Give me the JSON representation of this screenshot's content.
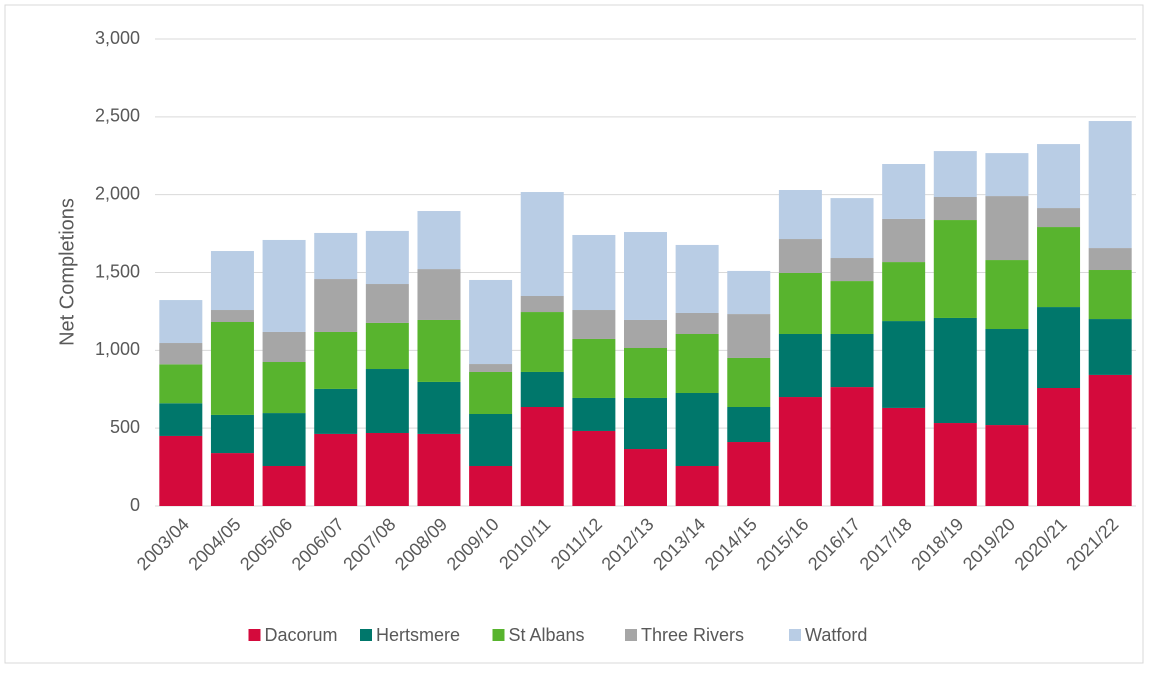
{
  "chart_data": {
    "type": "stacked_bar",
    "y_label": "Net Completions",
    "categories": [
      "2003/04",
      "2004/05",
      "2005/06",
      "2006/07",
      "2007/08",
      "2008/09",
      "2009/10",
      "2010/11",
      "2011/12",
      "2012/13",
      "2013/14",
      "2014/15",
      "2015/16",
      "2016/17",
      "2017/18",
      "2018/19",
      "2019/20",
      "2020/21",
      "2021/22"
    ],
    "series": [
      {
        "name": "Dacorum",
        "color": "#d40a3c",
        "values": [
          450,
          340,
          257,
          463,
          469,
          463,
          257,
          636,
          482,
          366,
          257,
          411,
          700,
          764,
          630,
          533,
          520,
          758,
          842
        ]
      },
      {
        "name": "Hertsmere",
        "color": "#00776b",
        "values": [
          210,
          245,
          340,
          289,
          411,
          334,
          334,
          225,
          212,
          328,
          469,
          225,
          405,
          341,
          558,
          675,
          617,
          520,
          359
        ]
      },
      {
        "name": "St Albans",
        "color": "#58b42e",
        "values": [
          250,
          597,
          328,
          366,
          296,
          398,
          270,
          385,
          379,
          321,
          379,
          315,
          392,
          340,
          379,
          629,
          443,
          514,
          315
        ]
      },
      {
        "name": "Three Rivers",
        "color": "#a6a6a6",
        "values": [
          137,
          77,
          193,
          340,
          250,
          327,
          51,
          103,
          186,
          180,
          135,
          282,
          218,
          148,
          277,
          148,
          411,
          122,
          141
        ]
      },
      {
        "name": "Watford",
        "color": "#b9cde5",
        "values": [
          276,
          379,
          591,
          296,
          341,
          373,
          540,
          668,
          482,
          565,
          437,
          277,
          315,
          385,
          353,
          295,
          276,
          411,
          816
        ]
      }
    ],
    "ylim": [
      0,
      3000
    ],
    "yticks": [
      0,
      500,
      {
        "value": 1000,
        "label": "1,000"
      },
      {
        "value": 1500,
        "label": "1,500"
      },
      {
        "value": 2000,
        "label": "2,000"
      },
      {
        "value": 2500,
        "label": "2,500"
      },
      {
        "value": 3000,
        "label": "3,000"
      }
    ],
    "grid": true
  }
}
